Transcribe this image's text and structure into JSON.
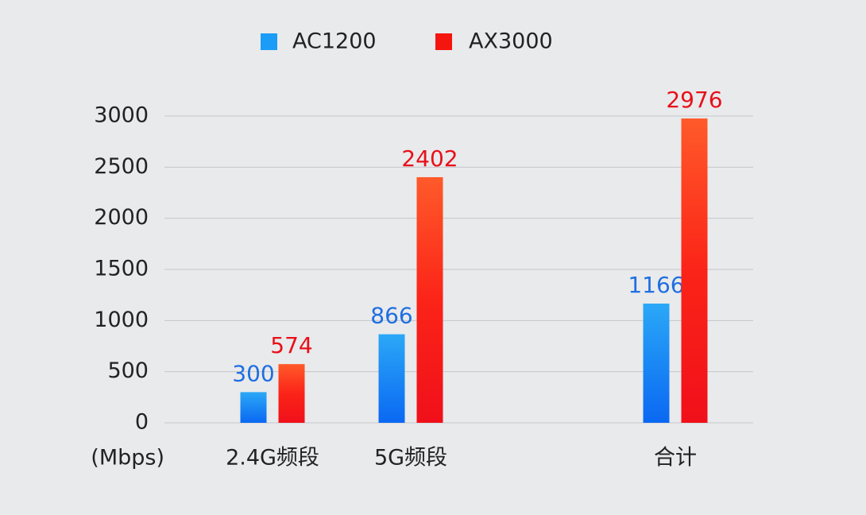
{
  "chart_data": {
    "type": "bar",
    "y_unit_label": "(Mbps)",
    "categories": [
      "2.4G频段",
      "5G频段",
      "合计"
    ],
    "series": [
      {
        "name": "AC1200",
        "color": "#1a9cf7",
        "label_color": "#1f6fe0",
        "values": [
          300,
          866,
          1166
        ]
      },
      {
        "name": "AX3000",
        "color": "#f5150f",
        "label_color": "#e8101a",
        "values": [
          574,
          2402,
          2976
        ]
      }
    ],
    "ylim": [
      0,
      3000
    ],
    "yticks": [
      0,
      500,
      1000,
      1500,
      2000,
      2500,
      3000
    ],
    "grid": true
  }
}
